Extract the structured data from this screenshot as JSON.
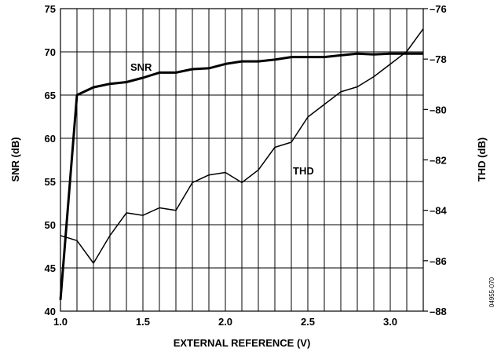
{
  "chart_data": {
    "type": "line",
    "xlabel": "EXTERNAL REFERENCE (V)",
    "ylabel_left": "SNR (dB)",
    "ylabel_right": "THD (dB)",
    "xlim": [
      1.0,
      3.2
    ],
    "ylim_left": [
      40,
      75
    ],
    "ylim_right": [
      -88,
      -76
    ],
    "x_ticks": [
      "1.0",
      "1.5",
      "2.0",
      "2.5",
      "3.0"
    ],
    "x_tick_values": [
      1.0,
      1.5,
      2.0,
      2.5,
      3.0
    ],
    "y_left_ticks": [
      "40",
      "45",
      "50",
      "55",
      "60",
      "65",
      "70",
      "75"
    ],
    "y_left_tick_values": [
      40,
      45,
      50,
      55,
      60,
      65,
      70,
      75
    ],
    "y_right_ticks": [
      "–76",
      "–78",
      "–80",
      "–82",
      "–84",
      "–86",
      "–88"
    ],
    "y_right_tick_values": [
      -76,
      -78,
      -80,
      -82,
      -84,
      -86,
      -88
    ],
    "grid": true,
    "series": [
      {
        "name": "SNR",
        "axis": "left",
        "x": [
          1.0,
          1.1,
          1.2,
          1.3,
          1.4,
          1.5,
          1.6,
          1.7,
          1.8,
          1.9,
          2.0,
          2.1,
          2.2,
          2.3,
          2.4,
          2.5,
          2.6,
          2.7,
          2.8,
          2.9,
          3.0,
          3.1,
          3.2
        ],
        "values": [
          41.3,
          65.0,
          65.9,
          66.3,
          66.5,
          67.0,
          67.6,
          67.6,
          68.0,
          68.1,
          68.6,
          68.9,
          68.9,
          69.1,
          69.4,
          69.4,
          69.4,
          69.6,
          69.8,
          69.7,
          69.8,
          69.8,
          69.8
        ]
      },
      {
        "name": "THD",
        "axis": "right",
        "x": [
          1.0,
          1.1,
          1.2,
          1.3,
          1.4,
          1.5,
          1.6,
          1.7,
          1.8,
          1.9,
          2.0,
          2.1,
          2.2,
          2.3,
          2.4,
          2.5,
          2.6,
          2.7,
          2.8,
          2.9,
          3.0,
          3.1,
          3.2
        ],
        "values": [
          -85.0,
          -85.2,
          -86.1,
          -85.0,
          -84.1,
          -84.2,
          -83.9,
          -84.0,
          -82.9,
          -82.6,
          -82.5,
          -82.9,
          -82.4,
          -81.5,
          -81.3,
          -80.3,
          -79.8,
          -79.3,
          -79.1,
          -78.7,
          -78.2,
          -77.7,
          -76.8
        ]
      }
    ],
    "figure_id": "04955-070"
  }
}
